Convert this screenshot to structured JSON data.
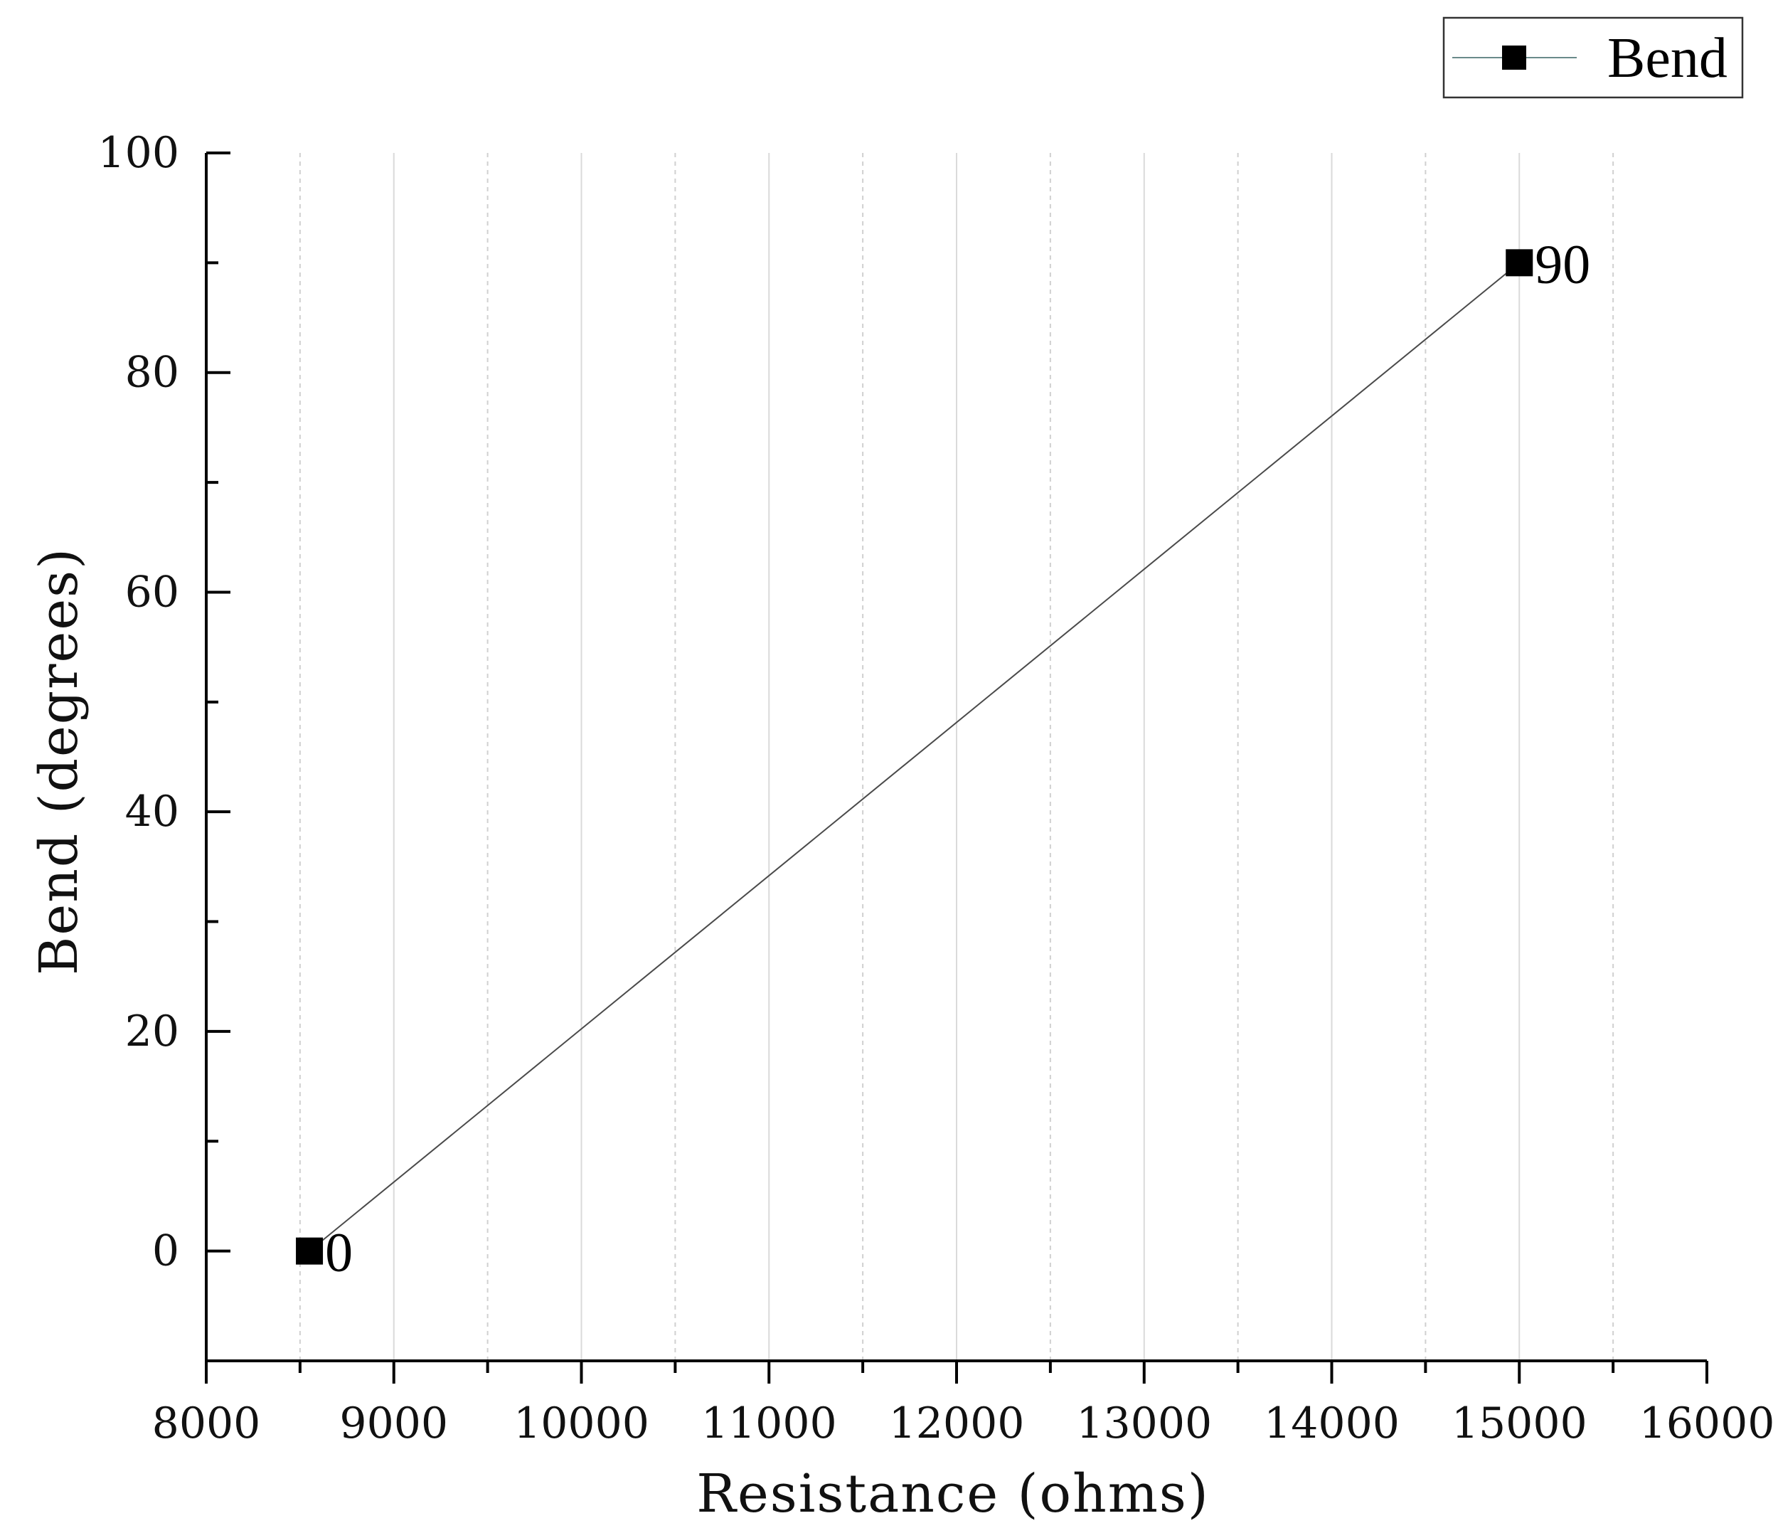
{
  "chart_data": {
    "type": "line",
    "xlabel": "Resistance (ohms)",
    "ylabel": "Bend (degrees)",
    "xlim": [
      8000,
      16000
    ],
    "ylim": [
      -10,
      100
    ],
    "x_ticks": [
      8000,
      9000,
      10000,
      11000,
      12000,
      13000,
      14000,
      15000,
      16000
    ],
    "y_ticks": [
      0,
      20,
      40,
      60,
      80,
      100
    ],
    "grid": true,
    "legend_position": "top-right",
    "series": [
      {
        "name": "Bend",
        "color": "#000000",
        "line_color": "#4a4a4a",
        "marker": "square",
        "x": [
          8550,
          15000
        ],
        "y": [
          0,
          90
        ],
        "data_labels": [
          "0",
          "90"
        ]
      }
    ]
  }
}
